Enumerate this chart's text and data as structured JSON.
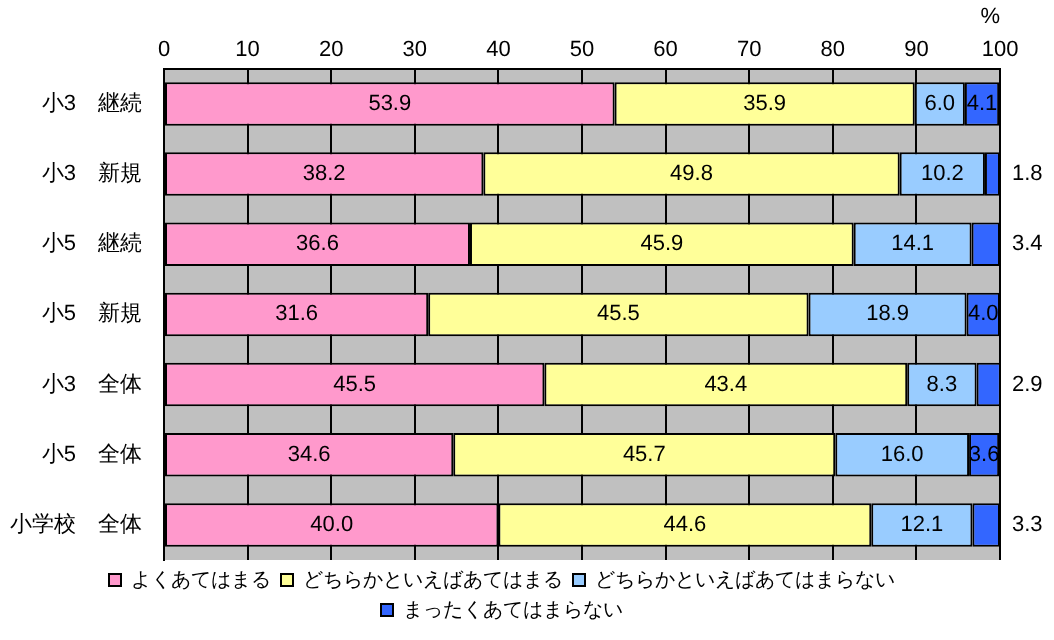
{
  "chart_data": {
    "type": "bar",
    "orientation": "horizontal",
    "stacked": true,
    "xlabel": "%",
    "categories": [
      "小3　継続",
      "小3　新規",
      "小5　継続",
      "小5　新規",
      "小3　全体",
      "小5　全体",
      "小学校　全体"
    ],
    "series": [
      {
        "name": "よくあてはまる",
        "color": "#ff99cc",
        "values": [
          53.9,
          38.2,
          36.6,
          31.6,
          45.5,
          34.6,
          40.0
        ],
        "value_labels": [
          "53.9",
          "38.2",
          "36.6",
          "31.6",
          "45.5",
          "34.6",
          "40.0"
        ]
      },
      {
        "name": "どちらかといえばあてはまる",
        "color": "#ffff99",
        "values": [
          35.9,
          49.8,
          45.9,
          45.5,
          43.4,
          45.7,
          44.6
        ],
        "value_labels": [
          "35.9",
          "49.8",
          "45.9",
          "45.5",
          "43.4",
          "45.7",
          "44.6"
        ]
      },
      {
        "name": "どちらかといえばあてはまらない",
        "color": "#99ccff",
        "values": [
          6.0,
          10.2,
          14.1,
          18.9,
          8.3,
          16.0,
          12.1
        ],
        "value_labels": [
          "6.0",
          "10.2",
          "14.1",
          "18.9",
          "8.3",
          "16.0",
          "12.1"
        ]
      },
      {
        "name": "まったくあてはまらない",
        "color": "#3366ff",
        "values": [
          4.1,
          1.8,
          3.4,
          4.0,
          2.9,
          3.6,
          3.3
        ],
        "value_labels": [
          "4.1",
          "1.8",
          "3.4",
          "4.0",
          "2.9",
          "3.6",
          "3.3"
        ]
      }
    ],
    "xlim": [
      0,
      100
    ],
    "xticks": [
      0,
      10,
      20,
      30,
      40,
      50,
      60,
      70,
      80,
      90,
      100
    ],
    "grid": "x",
    "legend": "bottom"
  }
}
